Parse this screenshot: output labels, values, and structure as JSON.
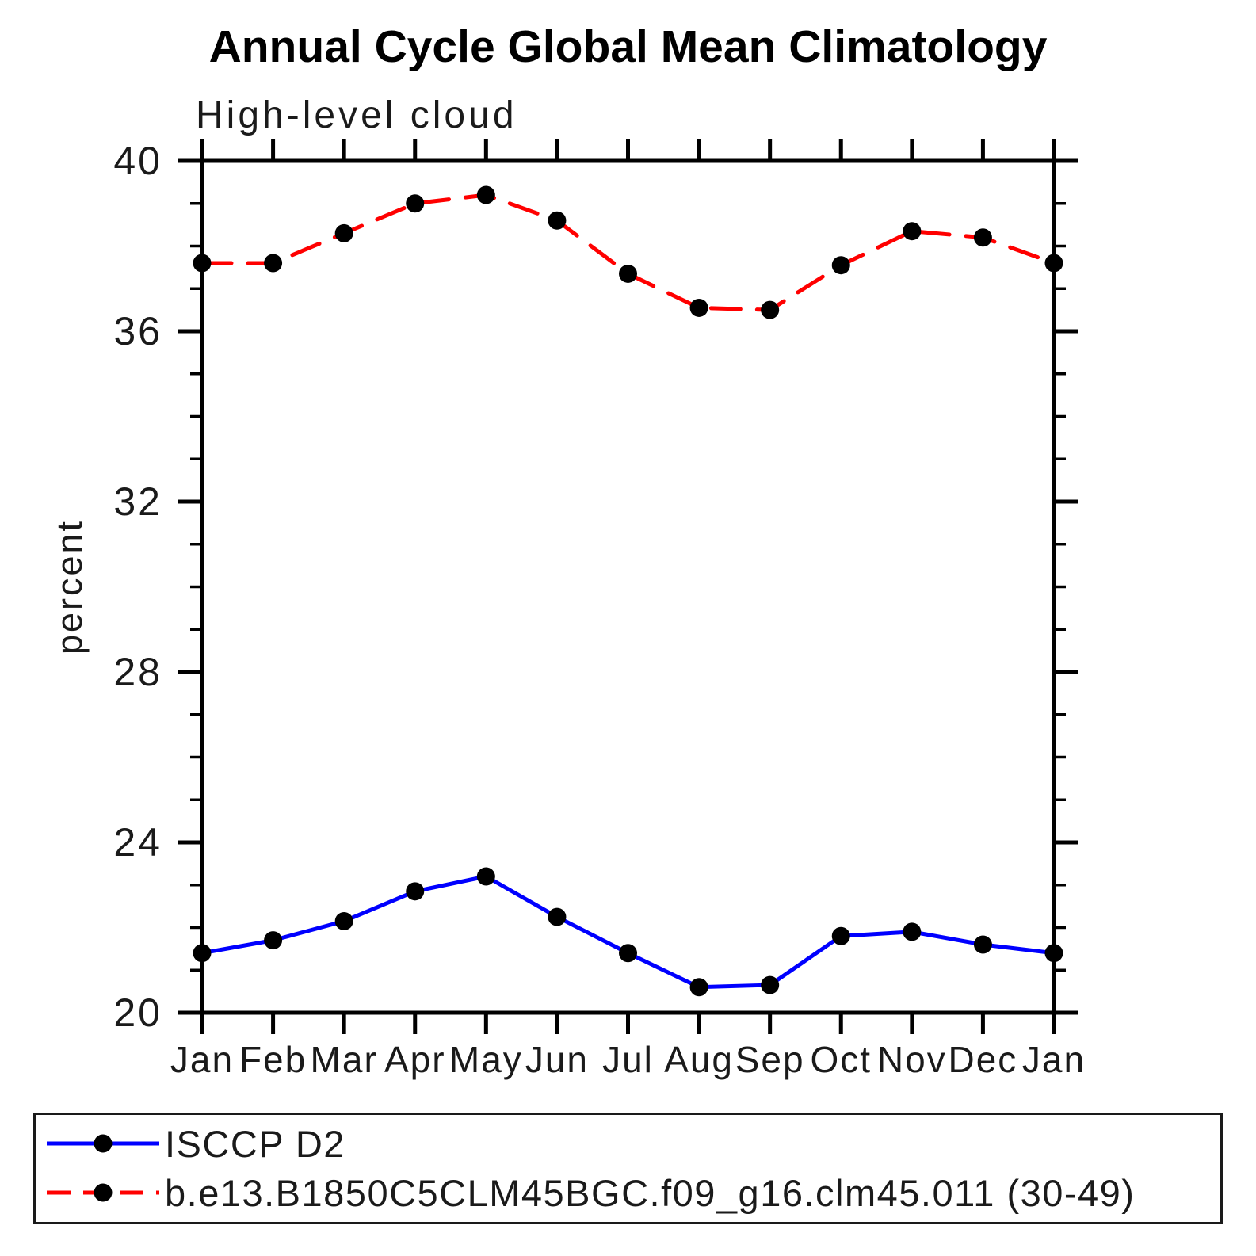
{
  "chart_data": {
    "type": "line",
    "title": "Annual Cycle Global Mean Climatology",
    "subtitle": "High-level cloud",
    "ylabel": "percent",
    "xlabel": "",
    "ylim": [
      20,
      40
    ],
    "yticks_major": [
      20,
      24,
      28,
      32,
      36,
      40
    ],
    "ytick_minor_step": 1,
    "grid": false,
    "legend_position": "bottom-box",
    "categories": [
      "Jan",
      "Feb",
      "Mar",
      "Apr",
      "May",
      "Jun",
      "Jul",
      "Aug",
      "Sep",
      "Oct",
      "Nov",
      "Dec",
      "Jan"
    ],
    "series": [
      {
        "name": "ISCCP D2",
        "color": "#0000ff",
        "line_style": "solid",
        "marker": "circle",
        "marker_color": "#000000",
        "values": [
          21.4,
          21.7,
          22.15,
          22.85,
          23.2,
          22.25,
          21.4,
          20.6,
          20.65,
          21.8,
          21.9,
          21.6,
          21.4
        ]
      },
      {
        "name": "b.e13.B1850C5CLM45BGC.f09_g16.clm45.011 (30-49)",
        "color": "#ff0000",
        "line_style": "dashed",
        "marker": "circle",
        "marker_color": "#000000",
        "values": [
          37.6,
          37.6,
          38.3,
          39.0,
          39.2,
          38.6,
          37.35,
          36.55,
          36.5,
          37.55,
          38.35,
          38.2,
          37.6
        ]
      }
    ],
    "axis_color": "#000000",
    "text_color": "#1a1a1a"
  }
}
